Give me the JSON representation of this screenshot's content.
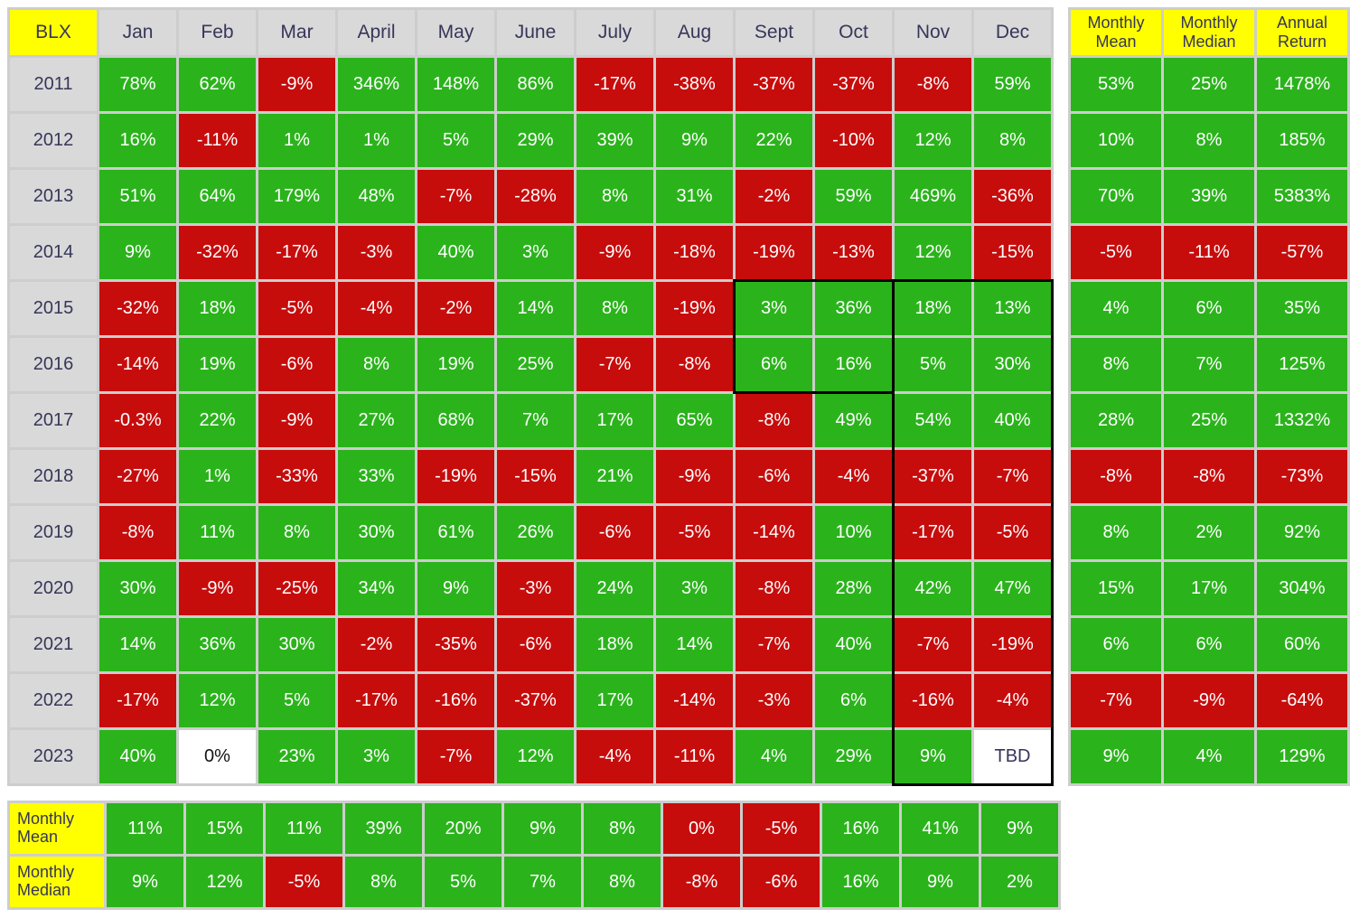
{
  "colors": {
    "positive": "#2bb31c",
    "negative": "#c70c0c",
    "neutral_cell": "#ffffff",
    "header_bg": "#d9d9d9",
    "label_bg": "#ffff00",
    "grid": "#cdcdcd",
    "text_dark": "#36365a",
    "text_light": "#ffffff",
    "highlight_border": "#000000"
  },
  "chart_data": {
    "type": "heatmap",
    "title": "BLX monthly returns heatmap by year",
    "corner_label": "BLX",
    "value_unit": "percent",
    "columns": [
      "Jan",
      "Feb",
      "Mar",
      "April",
      "May",
      "June",
      "July",
      "Aug",
      "Sept",
      "Oct",
      "Nov",
      "Dec"
    ],
    "summary_headers": [
      "Monthly Mean",
      "Monthly Median",
      "Annual Return"
    ],
    "rows": [
      {
        "year": "2011",
        "values": [
          "78%",
          "62%",
          "-9%",
          "346%",
          "148%",
          "86%",
          "-17%",
          "-38%",
          "-37%",
          "-37%",
          "-8%",
          "59%"
        ],
        "colors": "ggrgggrrrrrg",
        "mean": "53%",
        "median": "25%",
        "annual": "1478%",
        "side": "g"
      },
      {
        "year": "2012",
        "values": [
          "16%",
          "-11%",
          "1%",
          "1%",
          "5%",
          "29%",
          "39%",
          "9%",
          "22%",
          "-10%",
          "12%",
          "8%"
        ],
        "colors": "grgggggggrgg",
        "mean": "10%",
        "median": "8%",
        "annual": "185%",
        "side": "g"
      },
      {
        "year": "2013",
        "values": [
          "51%",
          "64%",
          "179%",
          "48%",
          "-7%",
          "-28%",
          "8%",
          "31%",
          "-2%",
          "59%",
          "469%",
          "-36%"
        ],
        "colors": "ggggrrggrggr",
        "mean": "70%",
        "median": "39%",
        "annual": "5383%",
        "side": "g"
      },
      {
        "year": "2014",
        "values": [
          "9%",
          "-32%",
          "-17%",
          "-3%",
          "40%",
          "3%",
          "-9%",
          "-18%",
          "-19%",
          "-13%",
          "12%",
          "-15%"
        ],
        "colors": "grrrggrrrrgr",
        "mean": "-5%",
        "median": "-11%",
        "annual": "-57%",
        "side": "r"
      },
      {
        "year": "2015",
        "values": [
          "-32%",
          "18%",
          "-5%",
          "-4%",
          "-2%",
          "14%",
          "8%",
          "-19%",
          "3%",
          "36%",
          "18%",
          "13%"
        ],
        "colors": "rgrrrggrgggg",
        "mean": "4%",
        "median": "6%",
        "annual": "35%",
        "side": "g"
      },
      {
        "year": "2016",
        "values": [
          "-14%",
          "19%",
          "-6%",
          "8%",
          "19%",
          "25%",
          "-7%",
          "-8%",
          "6%",
          "16%",
          "5%",
          "30%"
        ],
        "colors": "rgrgggrrgggg",
        "mean": "8%",
        "median": "7%",
        "annual": "125%",
        "side": "g"
      },
      {
        "year": "2017",
        "values": [
          "-0.3%",
          "22%",
          "-9%",
          "27%",
          "68%",
          "7%",
          "17%",
          "65%",
          "-8%",
          "49%",
          "54%",
          "40%"
        ],
        "colors": "rgrgggggrggg",
        "mean": "28%",
        "median": "25%",
        "annual": "1332%",
        "side": "g"
      },
      {
        "year": "2018",
        "values": [
          "-27%",
          "1%",
          "-33%",
          "33%",
          "-19%",
          "-15%",
          "21%",
          "-9%",
          "-6%",
          "-4%",
          "-37%",
          "-7%"
        ],
        "colors": "rgrgrrgrrrrr",
        "mean": "-8%",
        "median": "-8%",
        "annual": "-73%",
        "side": "r"
      },
      {
        "year": "2019",
        "values": [
          "-8%",
          "11%",
          "8%",
          "30%",
          "61%",
          "26%",
          "-6%",
          "-5%",
          "-14%",
          "10%",
          "-17%",
          "-5%"
        ],
        "colors": "rgggggrrrgrr",
        "mean": "8%",
        "median": "2%",
        "annual": "92%",
        "side": "g"
      },
      {
        "year": "2020",
        "values": [
          "30%",
          "-9%",
          "-25%",
          "34%",
          "9%",
          "-3%",
          "24%",
          "3%",
          "-8%",
          "28%",
          "42%",
          "47%"
        ],
        "colors": "grrggrggrggg",
        "mean": "15%",
        "median": "17%",
        "annual": "304%",
        "side": "g"
      },
      {
        "year": "2021",
        "values": [
          "14%",
          "36%",
          "30%",
          "-2%",
          "-35%",
          "-6%",
          "18%",
          "14%",
          "-7%",
          "40%",
          "-7%",
          "-19%"
        ],
        "colors": "gggrrrggrgrr",
        "mean": "6%",
        "median": "6%",
        "annual": "60%",
        "side": "g"
      },
      {
        "year": "2022",
        "values": [
          "-17%",
          "12%",
          "5%",
          "-17%",
          "-16%",
          "-37%",
          "17%",
          "-14%",
          "-3%",
          "6%",
          "-16%",
          "-4%"
        ],
        "colors": "rggrrrgrrgrr",
        "mean": "-7%",
        "median": "-9%",
        "annual": "-64%",
        "side": "r"
      },
      {
        "year": "2023",
        "values": [
          "40%",
          "0%",
          "23%",
          "3%",
          "-7%",
          "12%",
          "-4%",
          "-11%",
          "4%",
          "29%",
          "9%",
          "TBD"
        ],
        "colors": "gwggrgrrgggt",
        "mean": "9%",
        "median": "4%",
        "annual": "129%",
        "side": "g"
      }
    ],
    "bottom_rows": [
      {
        "label": "Monthly Mean",
        "values": [
          "11%",
          "15%",
          "11%",
          "39%",
          "20%",
          "9%",
          "8%",
          "0%",
          "-5%",
          "16%",
          "41%",
          "9%"
        ],
        "colors": "gggggggrrggg"
      },
      {
        "label": "Monthly Median",
        "values": [
          "9%",
          "12%",
          "-5%",
          "8%",
          "5%",
          "7%",
          "8%",
          "-8%",
          "-6%",
          "16%",
          "9%",
          "2%"
        ],
        "colors": "ggrggggrrggg"
      }
    ],
    "highlights": [
      {
        "start_row": "2015",
        "end_row": "2016",
        "start_col": "Sept",
        "end_col": "Oct"
      },
      {
        "start_row": "2015",
        "end_row": "2023",
        "start_col": "Nov",
        "end_col": "Dec"
      }
    ]
  }
}
